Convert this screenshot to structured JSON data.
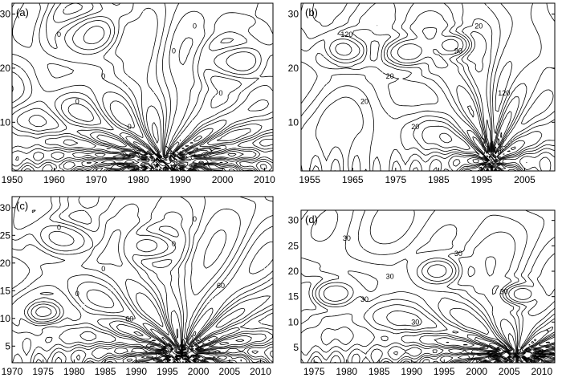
{
  "chart_data": [
    {
      "type": "contour",
      "panel_label": "(a)",
      "xlabel": "",
      "ylabel": "",
      "xlim": [
        1950,
        2012
      ],
      "ylim": [
        1,
        32
      ],
      "xticks": [
        1950,
        1960,
        1970,
        1980,
        1990,
        2000,
        2010
      ],
      "yticks": [
        10,
        20,
        30
      ],
      "ytick_side": "left",
      "contour_labels": [
        "0",
        "0",
        "0",
        "0",
        "0",
        "0",
        "0"
      ],
      "line_styles": [
        "solid",
        "dashed"
      ]
    },
    {
      "type": "contour",
      "panel_label": "(b)",
      "xlabel": "",
      "ylabel": "",
      "xlim": [
        1953,
        2012
      ],
      "ylim": [
        1,
        32
      ],
      "xticks": [
        1955,
        1965,
        1975,
        1985,
        1995,
        2005
      ],
      "yticks": [
        10,
        20,
        30
      ],
      "ytick_side": "right",
      "contour_labels": [
        "120",
        "20",
        "90",
        "120",
        "20",
        "20",
        "20"
      ],
      "line_styles": [
        "solid",
        "dashed"
      ]
    },
    {
      "type": "contour",
      "panel_label": "(c)",
      "xlabel": "",
      "ylabel": "",
      "xlim": [
        1970,
        2012
      ],
      "ylim": [
        2,
        32
      ],
      "xticks": [
        1970,
        1975,
        1980,
        1985,
        1990,
        1995,
        2000,
        2005,
        2010
      ],
      "yticks": [
        5,
        10,
        15,
        20,
        25,
        30
      ],
      "ytick_side": "left",
      "contour_labels": [
        "0",
        "0",
        "0",
        "60",
        "60",
        "0",
        "0"
      ],
      "line_styles": [
        "solid",
        "dashed"
      ]
    },
    {
      "type": "contour",
      "panel_label": "(d)",
      "xlabel": "",
      "ylabel": "",
      "xlim": [
        1973,
        2012
      ],
      "ylim": [
        2,
        32
      ],
      "xticks": [
        1975,
        1980,
        1985,
        1990,
        1995,
        2000,
        2005,
        2010
      ],
      "yticks": [
        5,
        10,
        15,
        20,
        25,
        30
      ],
      "ytick_side": "right",
      "contour_labels": [
        "30",
        "30",
        "30",
        "30",
        "30",
        "30"
      ],
      "line_styles": [
        "solid",
        "dashed"
      ]
    }
  ]
}
